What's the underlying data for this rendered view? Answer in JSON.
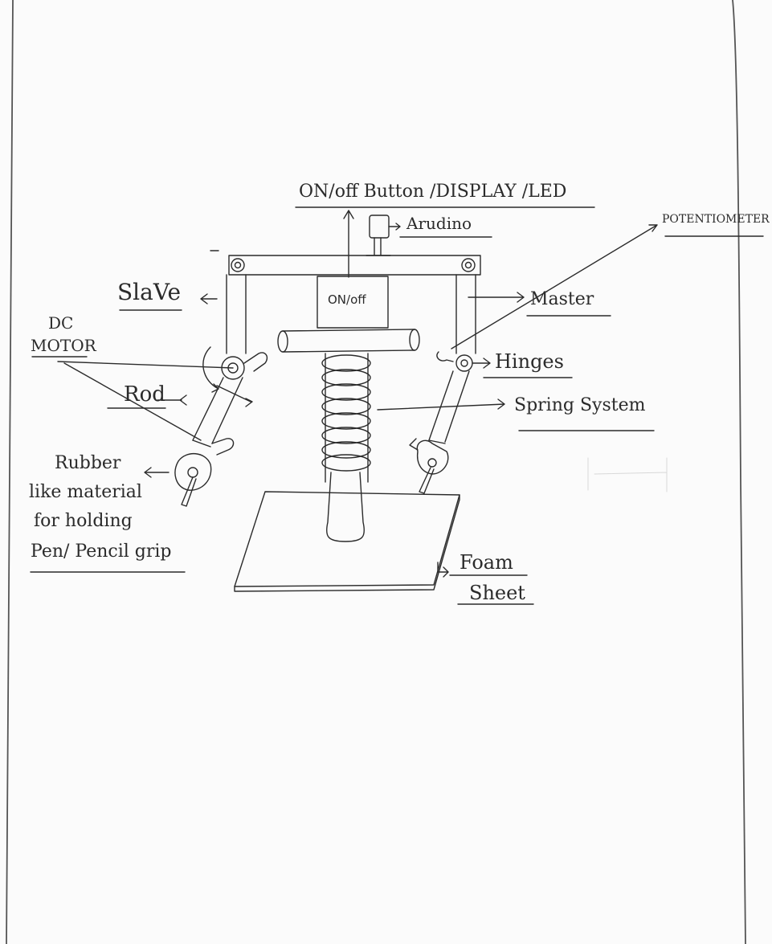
{
  "labels": {
    "top_title": "ON/off Button /DISPLAY /LED",
    "arduino": "Arudino",
    "potentiometer": "POTENTIOMETER",
    "slave": "SlaVe",
    "master": "Master",
    "on_off_box": "ON/off",
    "dc": "DC",
    "motor": "MOTOR",
    "hinges": "Hinges",
    "rod": "Rod",
    "spring_system": "Spring System",
    "rubber_line1": "Rubber",
    "rubber_line2": "like material",
    "rubber_line3": "for holding",
    "rubber_line4": "Pen/ Pencil grip",
    "foam_line1": "Foam",
    "foam_line2": "Sheet"
  },
  "colors": {
    "ink": "#2b2b2b",
    "paper": "#fbfbfb"
  }
}
